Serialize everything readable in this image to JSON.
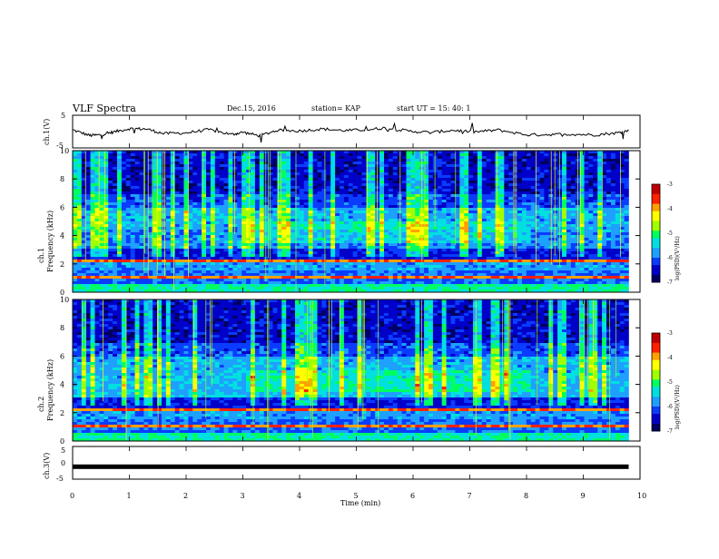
{
  "header": {
    "title": "VLF Spectra",
    "date": "Dec.15, 2016",
    "station": "station= KAP",
    "start": "start  UT =   15: 40: 1"
  },
  "colors": {
    "colormap": [
      "#000060",
      "#0000c8",
      "#0a3cff",
      "#1ea0ff",
      "#00e0e0",
      "#00ff60",
      "#a0ff00",
      "#ffff00",
      "#ffa000",
      "#ff2000",
      "#c00000",
      "#ffffff"
    ],
    "trace": "#000000"
  },
  "chart_data": [
    {
      "id": "ch1-waveform",
      "type": "line",
      "ylabel": "ch.1(V)",
      "ylim": [
        -5,
        5
      ],
      "yticks": [
        "5",
        "-5"
      ],
      "xlim": [
        0,
        10
      ],
      "x": [
        0,
        0.3,
        0.5,
        0.7,
        1.0,
        1.3,
        1.6,
        2.0,
        2.4,
        2.8,
        3.0,
        3.3,
        3.6,
        4.0,
        4.4,
        4.8,
        5.2,
        5.5,
        5.9,
        6.3,
        6.7,
        7.1,
        7.5,
        8.0,
        8.4,
        8.8,
        9.2,
        9.6,
        9.8
      ],
      "y": [
        0.5,
        -1.2,
        -1.0,
        -0.2,
        0.9,
        0.8,
        -0.6,
        -0.4,
        0.6,
        -0.9,
        -0.2,
        -1.3,
        0.4,
        0.2,
        0.8,
        0.3,
        0.6,
        1.1,
        0.2,
        -0.3,
        0.4,
        -0.1,
        0.5,
        -1.0,
        -0.9,
        -0.8,
        -1.0,
        -0.4,
        0.3
      ]
    },
    {
      "id": "ch1-spectrogram",
      "type": "heatmap",
      "ylabel": "ch.1\nFrequency (kHz)",
      "ylim": [
        0,
        10
      ],
      "yticks": [
        "10",
        "8",
        "6",
        "4",
        "2",
        "0"
      ],
      "xlim": [
        0,
        10
      ],
      "colorbar": {
        "label": "log(PSD)(V²/Hz)",
        "range": [
          -7,
          -3
        ],
        "ticks": [
          "-3",
          "-4",
          "-5",
          "-6",
          "-7"
        ]
      }
    },
    {
      "id": "ch2-spectrogram",
      "type": "heatmap",
      "ylabel": "ch.2\nFrequency (kHz)",
      "ylim": [
        0,
        10
      ],
      "yticks": [
        "10",
        "8",
        "6",
        "4",
        "2",
        "0"
      ],
      "xlim": [
        0,
        10
      ],
      "colorbar": {
        "label": "log(PSD)(V²/Hz)",
        "range": [
          -7,
          -3
        ],
        "ticks": [
          "-3",
          "-4",
          "-5",
          "-6",
          "-7"
        ]
      }
    },
    {
      "id": "ch3-waveform",
      "type": "line",
      "ylabel": "ch.3(V)",
      "ylim": [
        -5,
        5
      ],
      "yticks": [
        "5",
        "0",
        "-5"
      ],
      "xlim": [
        0,
        10
      ],
      "x": [
        0,
        9.8
      ],
      "y": [
        -1.2,
        -1.2
      ]
    }
  ],
  "xaxis": {
    "label": "Time (min)",
    "ticks": [
      "0",
      "1",
      "2",
      "3",
      "4",
      "5",
      "6",
      "7",
      "8",
      "9",
      "10"
    ]
  }
}
